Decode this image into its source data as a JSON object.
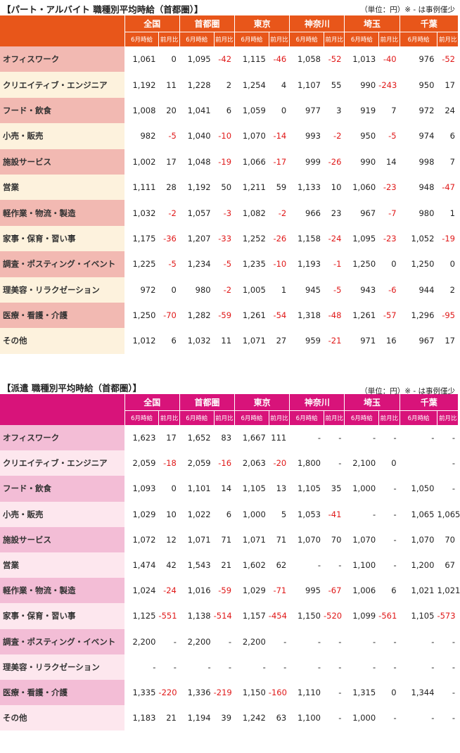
{
  "column_groups": [
    "全国",
    "首都圏",
    "東京",
    "神奈川",
    "埼玉",
    "千葉"
  ],
  "sub_headers": {
    "wage": "6月時給",
    "diff": "前月比"
  },
  "colors": {
    "part_header": "#e8561a",
    "haken_header": "#d8137a",
    "negative": "#e01818"
  },
  "part": {
    "title": "【パート・アルバイト 職種別平均時給（首都圏）】",
    "note": "（単位：円）※ - は事例僅少",
    "rows": [
      {
        "label": "オフィスワーク",
        "cells": [
          "1,061",
          "0",
          "1,095",
          "-42",
          "1,115",
          "-46",
          "1,058",
          "-52",
          "1,013",
          "-40",
          "976",
          "-52"
        ]
      },
      {
        "label": "クリエイティブ・エンジニア",
        "cells": [
          "1,192",
          "11",
          "1,228",
          "2",
          "1,254",
          "4",
          "1,107",
          "55",
          "990",
          "-243",
          "950",
          "17"
        ]
      },
      {
        "label": "フード・飲食",
        "cells": [
          "1,008",
          "20",
          "1,041",
          "6",
          "1,059",
          "0",
          "977",
          "3",
          "919",
          "7",
          "972",
          "24"
        ]
      },
      {
        "label": "小売・販売",
        "cells": [
          "982",
          "-5",
          "1,040",
          "-10",
          "1,070",
          "-14",
          "993",
          "-2",
          "950",
          "-5",
          "974",
          "6"
        ]
      },
      {
        "label": "施設サービス",
        "cells": [
          "1,002",
          "17",
          "1,048",
          "-19",
          "1,066",
          "-17",
          "999",
          "-26",
          "990",
          "14",
          "998",
          "7"
        ]
      },
      {
        "label": "営業",
        "cells": [
          "1,111",
          "28",
          "1,192",
          "50",
          "1,211",
          "59",
          "1,133",
          "10",
          "1,060",
          "-23",
          "948",
          "-47"
        ]
      },
      {
        "label": "軽作業・物流・製造",
        "cells": [
          "1,032",
          "-2",
          "1,057",
          "-3",
          "1,082",
          "-2",
          "966",
          "23",
          "967",
          "-7",
          "980",
          "1"
        ]
      },
      {
        "label": "家事・保育・習い事",
        "cells": [
          "1,175",
          "-36",
          "1,207",
          "-33",
          "1,252",
          "-26",
          "1,158",
          "-24",
          "1,095",
          "-23",
          "1,052",
          "-19"
        ]
      },
      {
        "label": "調査・ポスティング・イベント",
        "cells": [
          "1,225",
          "-5",
          "1,234",
          "-5",
          "1,235",
          "-10",
          "1,193",
          "-1",
          "1,250",
          "0",
          "1,250",
          "0"
        ]
      },
      {
        "label": "理美容・リラクゼーション",
        "cells": [
          "972",
          "0",
          "980",
          "-2",
          "1,005",
          "1",
          "945",
          "-5",
          "943",
          "-6",
          "944",
          "2"
        ]
      },
      {
        "label": "医療・看護・介護",
        "cells": [
          "1,250",
          "-70",
          "1,282",
          "-59",
          "1,261",
          "-54",
          "1,318",
          "-48",
          "1,261",
          "-57",
          "1,296",
          "-95"
        ]
      },
      {
        "label": "その他",
        "cells": [
          "1,012",
          "6",
          "1,032",
          "11",
          "1,071",
          "27",
          "959",
          "-21",
          "971",
          "16",
          "967",
          "17"
        ]
      }
    ]
  },
  "haken": {
    "title": "【派遣 職種別平均時給（首都圏）】",
    "note": "（単位：円）※ - は事例僅少",
    "rows": [
      {
        "label": "オフィスワーク",
        "cells": [
          "1,623",
          "17",
          "1,652",
          "83",
          "1,667",
          "111",
          "-",
          "-",
          "-",
          "-",
          "-",
          "-"
        ]
      },
      {
        "label": "クリエイティブ・エンジニア",
        "cells": [
          "2,059",
          "-18",
          "2,059",
          "-16",
          "2,063",
          "-20",
          "1,800",
          "-",
          "2,100",
          "0",
          "",
          "-"
        ]
      },
      {
        "label": "フード・飲食",
        "cells": [
          "1,093",
          "0",
          "1,101",
          "14",
          "1,105",
          "13",
          "1,105",
          "35",
          "1,000",
          "-",
          "1,050",
          "-"
        ]
      },
      {
        "label": "小売・販売",
        "cells": [
          "1,029",
          "10",
          "1,022",
          "6",
          "1,000",
          "5",
          "1,053",
          "-41",
          "-",
          "-",
          "1,065",
          "1,065"
        ]
      },
      {
        "label": "施設サービス",
        "cells": [
          "1,072",
          "12",
          "1,071",
          "71",
          "1,071",
          "71",
          "1,070",
          "70",
          "1,070",
          "-",
          "1,070",
          "70"
        ]
      },
      {
        "label": "営業",
        "cells": [
          "1,474",
          "42",
          "1,543",
          "21",
          "1,602",
          "62",
          "-",
          "-",
          "1,100",
          "-",
          "1,200",
          "67"
        ]
      },
      {
        "label": "軽作業・物流・製造",
        "cells": [
          "1,024",
          "-24",
          "1,016",
          "-59",
          "1,029",
          "-71",
          "995",
          "-67",
          "1,006",
          "6",
          "1,021",
          "1,021"
        ]
      },
      {
        "label": "家事・保育・習い事",
        "cells": [
          "1,125",
          "-551",
          "1,138",
          "-514",
          "1,157",
          "-454",
          "1,150",
          "-520",
          "1,099",
          "-561",
          "1,105",
          "-573"
        ]
      },
      {
        "label": "調査・ポスティング・イベント",
        "cells": [
          "2,200",
          "-",
          "2,200",
          "-",
          "2,200",
          "-",
          "-",
          "-",
          "-",
          "-",
          "-",
          "-"
        ]
      },
      {
        "label": "理美容・リラクゼーション",
        "cells": [
          "-",
          "-",
          "-",
          "-",
          "-",
          "-",
          "-",
          "-",
          "-",
          "-",
          "-",
          "-"
        ]
      },
      {
        "label": "医療・看護・介護",
        "cells": [
          "1,335",
          "-220",
          "1,336",
          "-219",
          "1,150",
          "-160",
          "1,110",
          "-",
          "1,315",
          "0",
          "1,344",
          "-"
        ]
      },
      {
        "label": "その他",
        "cells": [
          "1,183",
          "21",
          "1,194",
          "39",
          "1,242",
          "63",
          "1,100",
          "-",
          "1,000",
          "-",
          "-",
          "-"
        ]
      }
    ]
  }
}
